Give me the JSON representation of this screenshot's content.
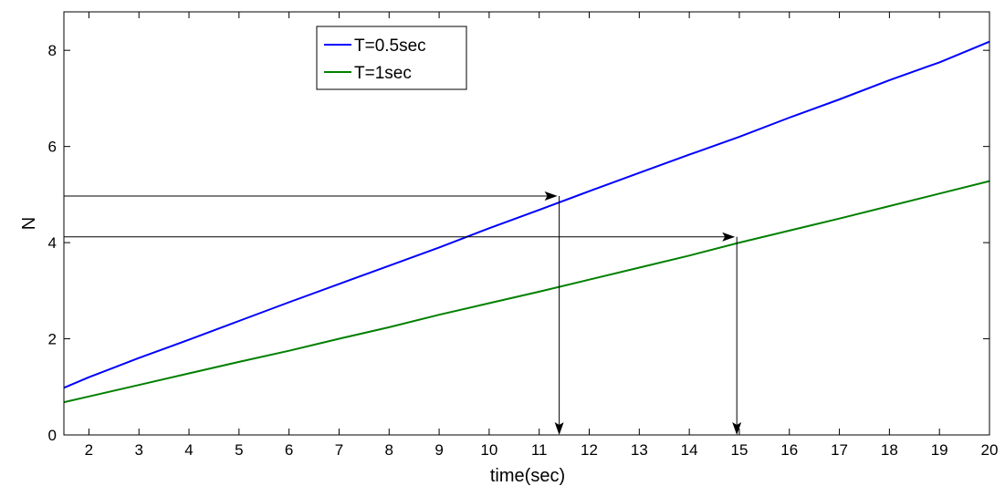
{
  "chart_data": {
    "type": "line",
    "xlabel": "time(sec)",
    "ylabel": "N",
    "xlim": [
      1.5,
      20
    ],
    "ylim": [
      0,
      8.8
    ],
    "xticks": [
      2,
      3,
      4,
      5,
      6,
      7,
      8,
      9,
      10,
      11,
      12,
      13,
      14,
      15,
      16,
      17,
      18,
      19,
      20
    ],
    "yticks": [
      0,
      2,
      4,
      6,
      8
    ],
    "grid": false,
    "legend_position": "top-center",
    "series": [
      {
        "name": "T=0.5sec",
        "color": "#0000ff",
        "x": [
          1.5,
          2,
          3,
          4,
          5,
          6,
          7,
          8,
          9,
          10,
          11,
          12,
          13,
          14,
          15,
          16,
          17,
          18,
          19,
          20
        ],
        "y": [
          0.98,
          1.2,
          1.6,
          1.98,
          2.37,
          2.76,
          3.14,
          3.52,
          3.9,
          4.3,
          4.68,
          5.07,
          5.45,
          5.83,
          6.2,
          6.6,
          6.98,
          7.38,
          7.75,
          8.18
        ]
      },
      {
        "name": "T=1sec",
        "color": "#008000",
        "x": [
          1.5,
          2,
          3,
          4,
          5,
          6,
          7,
          8,
          9,
          10,
          11,
          12,
          13,
          14,
          15,
          16,
          17,
          18,
          19,
          20
        ],
        "y": [
          0.68,
          0.8,
          1.04,
          1.28,
          1.52,
          1.75,
          2.0,
          2.24,
          2.5,
          2.74,
          2.98,
          3.23,
          3.48,
          3.73,
          4.0,
          4.25,
          4.5,
          4.76,
          5.02,
          5.28
        ]
      }
    ],
    "annotations": [
      {
        "type": "arrow-path",
        "description": "horizontal then down",
        "y_level": 4.97,
        "x_end": 11.4
      },
      {
        "type": "arrow-path",
        "description": "horizontal then down",
        "y_level": 4.12,
        "x_end": 14.95
      }
    ]
  }
}
